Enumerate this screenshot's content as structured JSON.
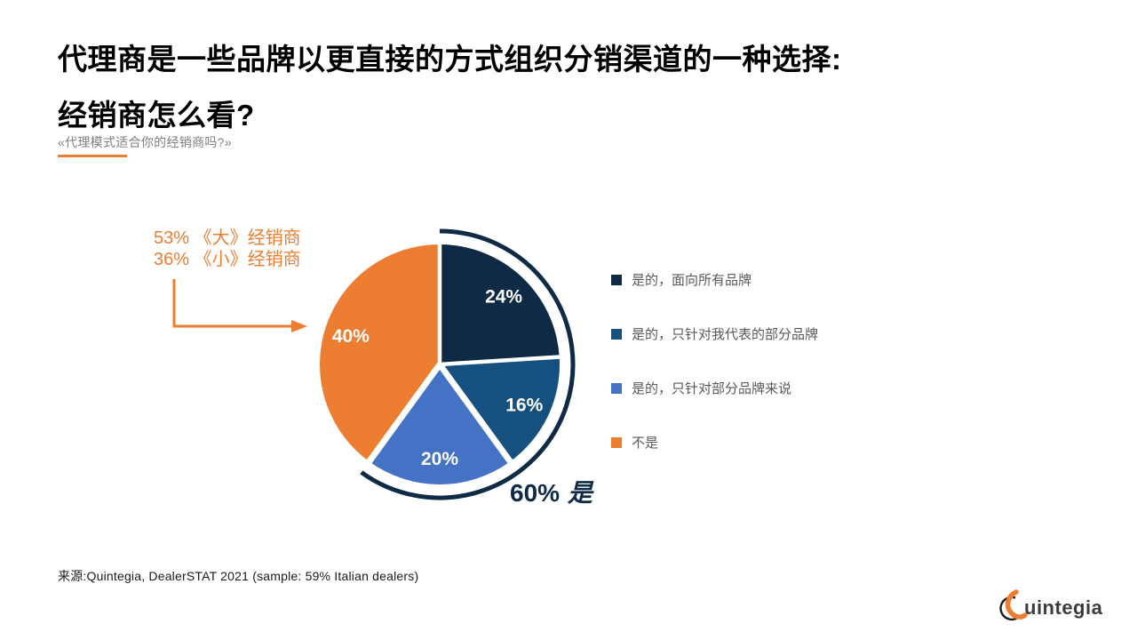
{
  "title": {
    "line1": "代理商是一些品牌以更直接的方式组织分销渠道的一种选择:",
    "line2": "经销商怎么看?"
  },
  "subtitle": {
    "text": "«代理模式适合你的经销商吗?»"
  },
  "annotation": {
    "line1": "53% 《大》经销商",
    "line2": "36% 《小》经销商"
  },
  "chart_data": {
    "type": "pie",
    "title": "«代理模式适合你的经销商吗?»",
    "unit": "%",
    "start_angle_deg": 0,
    "direction": "clockwise",
    "legend_position": "right",
    "slices": [
      {
        "label": "是的，面向所有品牌",
        "value": 24,
        "color": "#0e2a45"
      },
      {
        "label": "是的，只针对我代表的部分品牌",
        "value": 16,
        "color": "#15507f"
      },
      {
        "label": "是的，只针对部分品牌来说",
        "value": 20,
        "color": "#4472c4"
      },
      {
        "label": "不是",
        "value": 40,
        "color": "#ed7d31"
      }
    ],
    "total_callout": {
      "percent": "60%",
      "word": "是",
      "arc_span_pct": 60,
      "arc_color": "#0e2a45"
    },
    "annotations": [
      "53% 《大》经销商",
      "36% 《小》经销商",
      "60% 是"
    ]
  },
  "source": {
    "text": "来源:Quintegia, DealerSTAT 2021 (sample: 59% Italian dealers)"
  },
  "logo": {
    "name": "Quintegia",
    "text_after_q": "uintegia"
  },
  "colors": {
    "orange": "#ed7d31",
    "navy": "#0e2a45",
    "blue_mid": "#15507f",
    "blue_light": "#4472c4",
    "legend_text": "#595959",
    "subtitle_gray": "#7f7f7f"
  }
}
